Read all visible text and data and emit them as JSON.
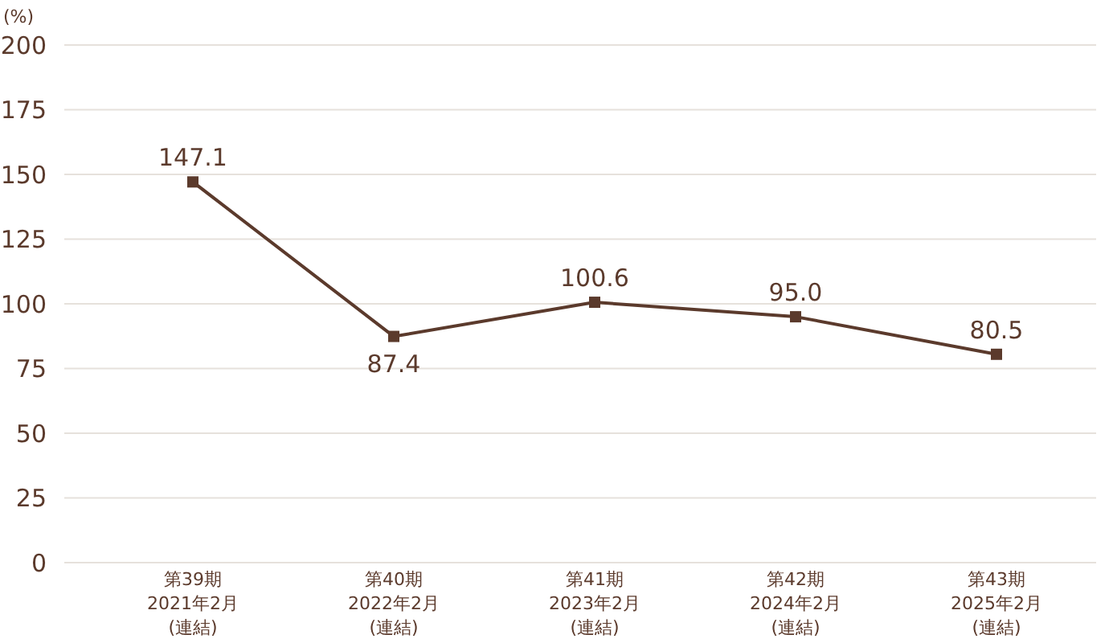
{
  "chart_data": {
    "type": "line",
    "ylabel": "(%)",
    "categories": [
      "第39期\n2021年2月\n(連結)",
      "第40期\n2022年2月\n(連結)",
      "第41期\n2023年2月\n(連結)",
      "第42期\n2024年2月\n(連結)",
      "第43期\n2025年2月\n(連結)"
    ],
    "series": [
      {
        "color": "#5b3a2c",
        "values": [
          147.1,
          87.4,
          100.6,
          95.0,
          80.5
        ],
        "value_labels": [
          "147.1",
          "87.4",
          "100.6",
          "95.0",
          "80.5"
        ]
      }
    ],
    "ylim": [
      0,
      200
    ],
    "yticks": [
      0,
      25,
      50,
      75,
      100,
      125,
      150,
      175,
      200
    ],
    "grid": "y",
    "marker": "square",
    "line_style": "solid"
  }
}
